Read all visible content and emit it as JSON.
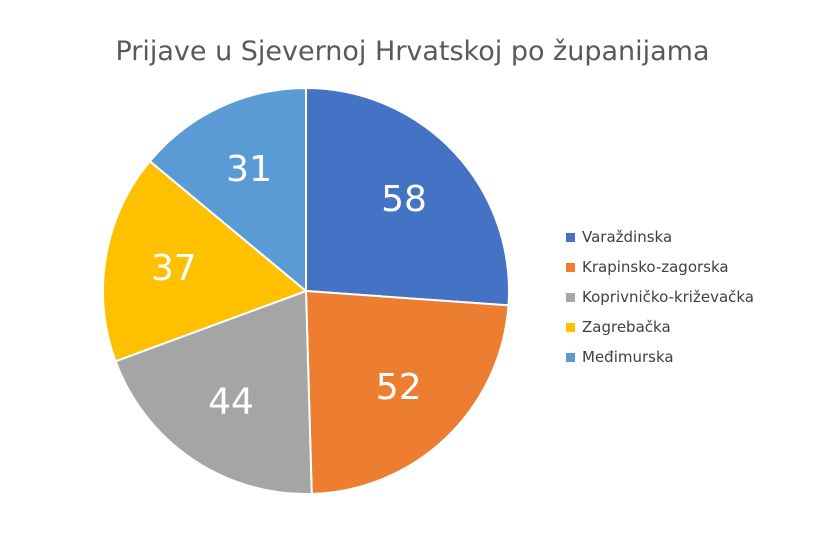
{
  "chart_data": {
    "type": "pie",
    "title": "Prijave u Sjevernoj Hrvatskoj po županijama",
    "slices": [
      {
        "label": "Varaždinska",
        "value": 58,
        "color": "#4472C4"
      },
      {
        "label": "Krapinsko-zagorska",
        "value": 52,
        "color": "#ED7D31"
      },
      {
        "label": "Koprivničko-križevačka",
        "value": 44,
        "color": "#A5A5A5"
      },
      {
        "label": "Zagrebačka",
        "value": 37,
        "color": "#FFC000"
      },
      {
        "label": "Međimurska",
        "value": 31,
        "color": "#5B9BD5"
      }
    ],
    "legend": "right",
    "data_labels": true
  }
}
